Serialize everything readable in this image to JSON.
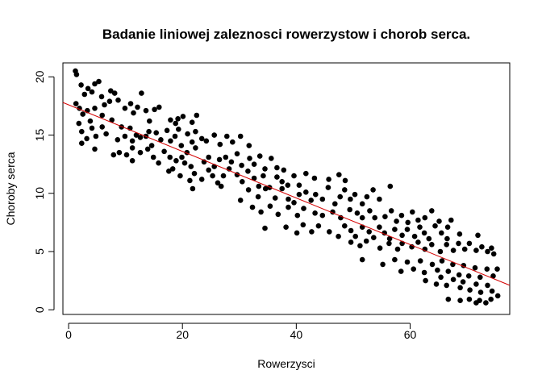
{
  "chart_data": {
    "type": "scatter",
    "title": "Badanie liniowej zaleznosci rowerzystow i chorob serca.",
    "xlabel": "Rowerzysci",
    "ylabel": "Choroby serca",
    "xlim": [
      -1,
      77.5
    ],
    "ylim": [
      -0.4,
      21.2
    ],
    "xticks": [
      "0",
      "20",
      "40",
      "60"
    ],
    "yticks": [
      "0",
      "5",
      "10",
      "15",
      "20"
    ],
    "grid": false,
    "legend": "none",
    "point_color": "#000000",
    "line_color": "#d40000",
    "regression_line": {
      "intercept": 17.6,
      "slope": -0.2
    },
    "points": [
      [
        1.2,
        20.5
      ],
      [
        1.4,
        20.2
      ],
      [
        2.2,
        19.3
      ],
      [
        2.8,
        18.5
      ],
      [
        3.4,
        19.0
      ],
      [
        4.1,
        18.7
      ],
      [
        4.6,
        19.4
      ],
      [
        5.3,
        19.6
      ],
      [
        5.8,
        18.3
      ],
      [
        7.4,
        18.8
      ],
      [
        8.1,
        18.6
      ],
      [
        12.8,
        18.6
      ],
      [
        22.5,
        16.7
      ],
      [
        1.3,
        17.7
      ],
      [
        1.9,
        17.3
      ],
      [
        2.5,
        16.8
      ],
      [
        3.3,
        17.1
      ],
      [
        3.8,
        16.2
      ],
      [
        4.6,
        17.3
      ],
      [
        5.9,
        16.7
      ],
      [
        6.3,
        17.6
      ],
      [
        7.2,
        17.9
      ],
      [
        8.7,
        18.0
      ],
      [
        9.9,
        17.3
      ],
      [
        10.9,
        17.7
      ],
      [
        11.4,
        16.9
      ],
      [
        12.1,
        17.4
      ],
      [
        13.6,
        17.1
      ],
      [
        14.2,
        16.2
      ],
      [
        15.1,
        17.2
      ],
      [
        15.9,
        17.4
      ],
      [
        17.9,
        16.3
      ],
      [
        18.8,
        16.0
      ],
      [
        19.2,
        16.4
      ],
      [
        20.1,
        16.6
      ],
      [
        21.7,
        16.1
      ],
      [
        1.8,
        16.0
      ],
      [
        2.3,
        15.3
      ],
      [
        4.1,
        15.6
      ],
      [
        4.8,
        14.9
      ],
      [
        5.9,
        15.7
      ],
      [
        6.6,
        15.1
      ],
      [
        7.6,
        16.3
      ],
      [
        8.6,
        14.6
      ],
      [
        9.3,
        15.7
      ],
      [
        9.9,
        14.9
      ],
      [
        10.8,
        15.6
      ],
      [
        11.2,
        14.5
      ],
      [
        11.9,
        15.0
      ],
      [
        12.6,
        14.8
      ],
      [
        13.6,
        14.9
      ],
      [
        14.1,
        15.3
      ],
      [
        14.6,
        14.1
      ],
      [
        15.4,
        15.2
      ],
      [
        16.2,
        14.6
      ],
      [
        17.3,
        15.4
      ],
      [
        17.9,
        14.5
      ],
      [
        18.7,
        14.9
      ],
      [
        19.3,
        15.5
      ],
      [
        19.8,
        14.1
      ],
      [
        20.9,
        15.1
      ],
      [
        21.7,
        14.4
      ],
      [
        22.3,
        15.3
      ],
      [
        23.4,
        14.7
      ],
      [
        24.2,
        14.5
      ],
      [
        25.6,
        15.0
      ],
      [
        26.6,
        14.2
      ],
      [
        27.8,
        14.9
      ],
      [
        28.8,
        14.4
      ],
      [
        30.2,
        14.9
      ],
      [
        31.7,
        14.1
      ],
      [
        2.3,
        14.3
      ],
      [
        3.2,
        14.7
      ],
      [
        4.6,
        13.8
      ],
      [
        7.9,
        13.3
      ],
      [
        8.9,
        13.5
      ],
      [
        10.2,
        13.3
      ],
      [
        11.2,
        13.9
      ],
      [
        12.6,
        13.5
      ],
      [
        13.9,
        13.8
      ],
      [
        14.9,
        13.1
      ],
      [
        15.8,
        12.6
      ],
      [
        16.8,
        13.6
      ],
      [
        17.8,
        13.1
      ],
      [
        18.9,
        12.8
      ],
      [
        19.9,
        13.1
      ],
      [
        20.8,
        13.5
      ],
      [
        21.5,
        12.3
      ],
      [
        22.3,
        13.9
      ],
      [
        23.8,
        12.7
      ],
      [
        24.6,
        13.1
      ],
      [
        25.6,
        12.3
      ],
      [
        26.5,
        12.9
      ],
      [
        27.6,
        13.1
      ],
      [
        28.6,
        12.7
      ],
      [
        29.6,
        13.4
      ],
      [
        30.4,
        12.4
      ],
      [
        31.8,
        13.0
      ],
      [
        32.6,
        12.5
      ],
      [
        33.6,
        13.2
      ],
      [
        34.5,
        12.1
      ],
      [
        35.6,
        13.0
      ],
      [
        36.6,
        12.2
      ],
      [
        11.2,
        12.8
      ],
      [
        17.6,
        11.9
      ],
      [
        18.3,
        12.1
      ],
      [
        19.6,
        11.5
      ],
      [
        20.4,
        12.6
      ],
      [
        21.3,
        11.1
      ],
      [
        22.1,
        11.7
      ],
      [
        23.4,
        11.2
      ],
      [
        24.6,
        12.0
      ],
      [
        25.3,
        11.5
      ],
      [
        26.2,
        10.9
      ],
      [
        27.2,
        11.5
      ],
      [
        28.2,
        12.1
      ],
      [
        29.6,
        11.6
      ],
      [
        30.5,
        11.0
      ],
      [
        31.5,
        11.9
      ],
      [
        32.6,
        11.3
      ],
      [
        33.4,
        10.6
      ],
      [
        34.2,
        11.5
      ],
      [
        35.3,
        10.5
      ],
      [
        36.6,
        11.4
      ],
      [
        37.5,
        11.0
      ],
      [
        38.5,
        10.7
      ],
      [
        39.6,
        11.5
      ],
      [
        40.5,
        10.7
      ],
      [
        41.7,
        11.7
      ],
      [
        43.2,
        11.3
      ],
      [
        45.7,
        11.2
      ],
      [
        47.5,
        11.6
      ],
      [
        48.6,
        11.1
      ],
      [
        37.8,
        12.0
      ],
      [
        21.8,
        10.4
      ],
      [
        26.8,
        10.6
      ],
      [
        30.2,
        9.4
      ],
      [
        31.6,
        10.3
      ],
      [
        33.3,
        9.7
      ],
      [
        34.6,
        10.4
      ],
      [
        36.3,
        9.6
      ],
      [
        37.5,
        10.4
      ],
      [
        38.6,
        9.5
      ],
      [
        39.6,
        9.2
      ],
      [
        40.5,
        9.9
      ],
      [
        41.7,
        10.1
      ],
      [
        42.6,
        9.4
      ],
      [
        43.4,
        9.9
      ],
      [
        44.6,
        9.5
      ],
      [
        45.6,
        10.5
      ],
      [
        46.8,
        9.1
      ],
      [
        47.7,
        9.7
      ],
      [
        48.5,
        10.3
      ],
      [
        49.5,
        9.5
      ],
      [
        50.3,
        9.9
      ],
      [
        51.6,
        9.1
      ],
      [
        52.4,
        9.7
      ],
      [
        53.5,
        10.3
      ],
      [
        54.6,
        9.5
      ],
      [
        56.5,
        10.6
      ],
      [
        32.3,
        8.8
      ],
      [
        33.8,
        8.4
      ],
      [
        35.4,
        8.9
      ],
      [
        36.8,
        8.2
      ],
      [
        38.6,
        8.8
      ],
      [
        40.2,
        8.1
      ],
      [
        41.3,
        8.7
      ],
      [
        43.3,
        8.3
      ],
      [
        44.6,
        8.1
      ],
      [
        46.4,
        8.4
      ],
      [
        47.8,
        7.9
      ],
      [
        49.4,
        8.6
      ],
      [
        50.7,
        8.3
      ],
      [
        51.6,
        7.9
      ],
      [
        52.9,
        8.5
      ],
      [
        53.8,
        7.9
      ],
      [
        55.6,
        8.0
      ],
      [
        56.7,
        8.5
      ],
      [
        57.6,
        7.6
      ],
      [
        58.5,
        8.1
      ],
      [
        59.6,
        7.5
      ],
      [
        60.4,
        8.4
      ],
      [
        61.4,
        7.7
      ],
      [
        62.6,
        7.9
      ],
      [
        63.8,
        8.5
      ],
      [
        65.1,
        7.6
      ],
      [
        66.6,
        7.1
      ],
      [
        67.2,
        7.7
      ],
      [
        34.5,
        7.0
      ],
      [
        38.2,
        7.1
      ],
      [
        41.2,
        7.3
      ],
      [
        42.7,
        6.7
      ],
      [
        43.9,
        7.2
      ],
      [
        45.8,
        6.7
      ],
      [
        47.4,
        6.3
      ],
      [
        48.5,
        7.2
      ],
      [
        49.6,
        6.8
      ],
      [
        50.4,
        6.3
      ],
      [
        51.6,
        7.1
      ],
      [
        52.8,
        6.7
      ],
      [
        53.6,
        6.2
      ],
      [
        54.6,
        7.1
      ],
      [
        55.5,
        6.6
      ],
      [
        56.4,
        6.1
      ],
      [
        57.3,
        6.9
      ],
      [
        58.6,
        6.4
      ],
      [
        59.5,
        6.9
      ],
      [
        60.8,
        6.3
      ],
      [
        61.7,
        7.1
      ],
      [
        62.5,
        6.6
      ],
      [
        63.3,
        6.1
      ],
      [
        64.4,
        7.2
      ],
      [
        65.5,
        6.6
      ],
      [
        66.5,
        6.1
      ],
      [
        68.7,
        6.5
      ],
      [
        71.9,
        6.4
      ],
      [
        40.1,
        6.6
      ],
      [
        49.6,
        5.8
      ],
      [
        51.2,
        5.5
      ],
      [
        52.3,
        5.9
      ],
      [
        54.7,
        5.3
      ],
      [
        56.3,
        5.7
      ],
      [
        57.8,
        5.2
      ],
      [
        58.6,
        5.7
      ],
      [
        60.3,
        5.4
      ],
      [
        61.4,
        5.8
      ],
      [
        62.6,
        5.2
      ],
      [
        63.8,
        5.6
      ],
      [
        65.3,
        5.0
      ],
      [
        66.4,
        5.6
      ],
      [
        67.6,
        5.1
      ],
      [
        68.5,
        5.7
      ],
      [
        69.6,
        5.2
      ],
      [
        70.4,
        5.7
      ],
      [
        71.6,
        5.1
      ],
      [
        72.6,
        5.4
      ],
      [
        73.6,
        5.0
      ],
      [
        74.3,
        5.3
      ],
      [
        74.7,
        4.8
      ],
      [
        51.6,
        4.3
      ],
      [
        55.2,
        3.9
      ],
      [
        57.3,
        4.3
      ],
      [
        58.4,
        3.3
      ],
      [
        59.5,
        4.1
      ],
      [
        60.6,
        3.5
      ],
      [
        61.8,
        4.2
      ],
      [
        62.5,
        3.2
      ],
      [
        63.9,
        3.9
      ],
      [
        64.8,
        3.4
      ],
      [
        65.6,
        4.2
      ],
      [
        66.7,
        3.3
      ],
      [
        67.5,
        3.9
      ],
      [
        68.6,
        3.0
      ],
      [
        69.4,
        3.8
      ],
      [
        70.3,
        2.9
      ],
      [
        71.4,
        3.6
      ],
      [
        72.3,
        2.8
      ],
      [
        73.5,
        3.5
      ],
      [
        74.6,
        2.9
      ],
      [
        75.3,
        3.5
      ],
      [
        62.7,
        2.5
      ],
      [
        64.6,
        2.2
      ],
      [
        65.4,
        2.8
      ],
      [
        66.4,
        2.1
      ],
      [
        67.6,
        2.6
      ],
      [
        68.8,
        1.9
      ],
      [
        69.3,
        2.4
      ],
      [
        70.5,
        1.7
      ],
      [
        71.6,
        2.2
      ],
      [
        72.4,
        1.5
      ],
      [
        73.6,
        2.1
      ],
      [
        74.4,
        1.6
      ],
      [
        75.4,
        1.2
      ],
      [
        66.7,
        0.9
      ],
      [
        68.8,
        0.8
      ],
      [
        70.4,
        0.9
      ],
      [
        71.6,
        0.6
      ],
      [
        72.2,
        0.8
      ],
      [
        73.3,
        0.6
      ],
      [
        74.2,
        0.9
      ]
    ]
  }
}
